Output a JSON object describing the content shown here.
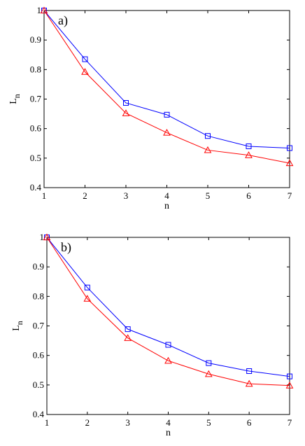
{
  "chart_data": [
    {
      "type": "line",
      "panel_label": "a)",
      "xlabel": "n",
      "ylabel": "L",
      "ylabel_sub": "n",
      "xlim": [
        1,
        7
      ],
      "ylim": [
        0.4,
        1
      ],
      "x": [
        1,
        2,
        3,
        4,
        5,
        6,
        7
      ],
      "xticks": [
        "1",
        "2",
        "3",
        "4",
        "5",
        "6",
        "7"
      ],
      "yticks": [
        "0.4",
        "0.5",
        "0.6",
        "0.7",
        "0.8",
        "0.9",
        "1"
      ],
      "grid": false,
      "series": [
        {
          "values": [
            1.0,
            0.835,
            0.687,
            0.647,
            0.575,
            0.54,
            0.534
          ],
          "color": "#0000ff",
          "marker": "square"
        },
        {
          "values": [
            1.0,
            0.792,
            0.652,
            0.586,
            0.527,
            0.51,
            0.483
          ],
          "color": "#ff0000",
          "marker": "triangle"
        }
      ]
    },
    {
      "type": "line",
      "panel_label": "b)",
      "xlabel": "n",
      "ylabel": "L",
      "ylabel_sub": "n",
      "xlim": [
        1,
        7
      ],
      "ylim": [
        0.4,
        1
      ],
      "x": [
        1,
        2,
        3,
        4,
        5,
        6,
        7
      ],
      "xticks": [
        "1",
        "2",
        "3",
        "4",
        "5",
        "6",
        "7"
      ],
      "yticks": [
        "0.4",
        "0.5",
        "0.6",
        "0.7",
        "0.8",
        "0.9",
        "1"
      ],
      "grid": false,
      "series": [
        {
          "values": [
            1.0,
            0.83,
            0.689,
            0.636,
            0.574,
            0.547,
            0.529
          ],
          "color": "#0000ff",
          "marker": "square"
        },
        {
          "values": [
            1.0,
            0.792,
            0.659,
            0.582,
            0.537,
            0.504,
            0.498
          ],
          "color": "#ff0000",
          "marker": "triangle"
        }
      ]
    }
  ]
}
